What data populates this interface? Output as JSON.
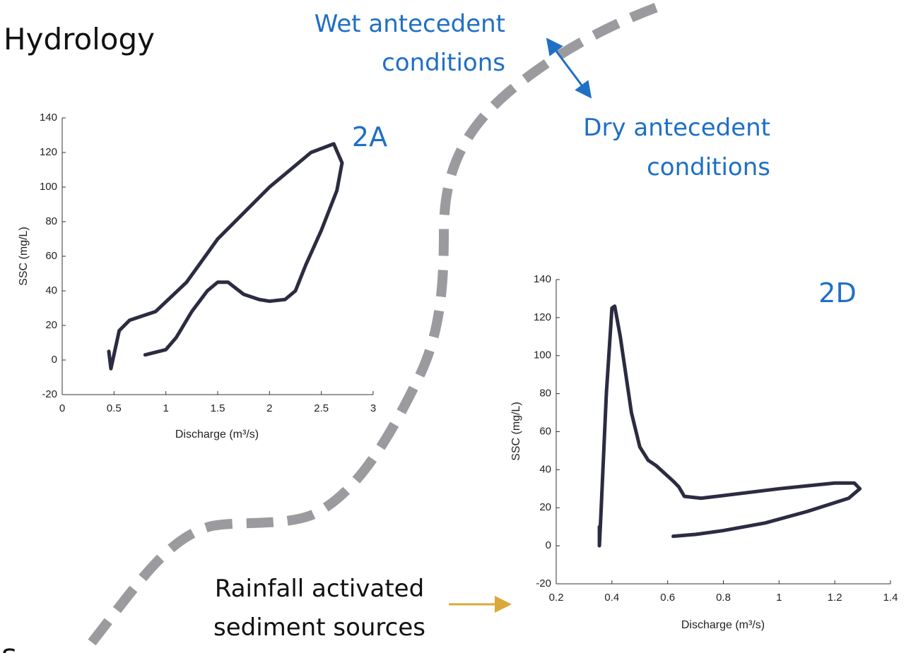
{
  "slide": {
    "title": "Hydrology",
    "fragment": "s",
    "wet_label": [
      "Wet antecedent",
      "conditions"
    ],
    "dry_label": [
      "Dry antecedent",
      "conditions"
    ],
    "rainfall_label": [
      "Rainfall activated",
      "sediment sources"
    ]
  },
  "chart_data": [
    {
      "type": "line",
      "label": "2A",
      "xlabel": "Discharge (m³/s)",
      "ylabel": "SSC (mg/L)",
      "x": [
        0.45,
        0.47,
        0.55,
        0.65,
        0.9,
        1.2,
        1.5,
        2.0,
        2.4,
        2.62,
        2.7,
        2.65,
        2.5,
        2.35,
        2.25,
        2.15,
        2.0,
        1.9,
        1.75,
        1.6,
        1.5,
        1.4,
        1.25,
        1.1,
        1.0,
        0.8
      ],
      "series": [
        {
          "color": "#2b2c42",
          "values": [
            5,
            -5,
            17,
            23,
            28,
            45,
            70,
            100,
            120,
            125,
            114,
            98,
            75,
            55,
            40,
            35,
            34,
            35,
            38,
            45,
            45,
            40,
            28,
            13,
            6,
            3
          ]
        }
      ],
      "xlim": [
        0,
        3
      ],
      "ylim": [
        -20,
        140
      ],
      "xticks": [
        0,
        0.5,
        1,
        1.5,
        2,
        2.5,
        3
      ],
      "yticks": [
        -20,
        0,
        20,
        40,
        60,
        80,
        100,
        120,
        140
      ]
    },
    {
      "type": "line",
      "label": "2D",
      "xlabel": "Discharge (m³/s)",
      "ylabel": "SSC (mg/L)",
      "x": [
        0.355,
        0.355,
        0.36,
        0.38,
        0.4,
        0.41,
        0.43,
        0.47,
        0.5,
        0.53,
        0.56,
        0.62,
        0.64,
        0.66,
        0.72,
        1.0,
        1.2,
        1.27,
        1.29,
        1.25,
        1.1,
        0.95,
        0.8,
        0.7,
        0.62
      ],
      "series": [
        {
          "color": "#2b2c42",
          "values": [
            10,
            0,
            15,
            80,
            125,
            126,
            110,
            70,
            52,
            45,
            42,
            34,
            31,
            26,
            25,
            30,
            33,
            33,
            30,
            25,
            18,
            12,
            8,
            6,
            5
          ]
        }
      ],
      "xlim": [
        0.2,
        1.4
      ],
      "ylim": [
        -20,
        140
      ],
      "xticks": [
        0.2,
        0.4,
        0.6,
        0.8,
        1,
        1.2,
        1.4
      ],
      "yticks": [
        -20,
        0,
        20,
        40,
        60,
        80,
        100,
        120,
        140
      ]
    }
  ]
}
